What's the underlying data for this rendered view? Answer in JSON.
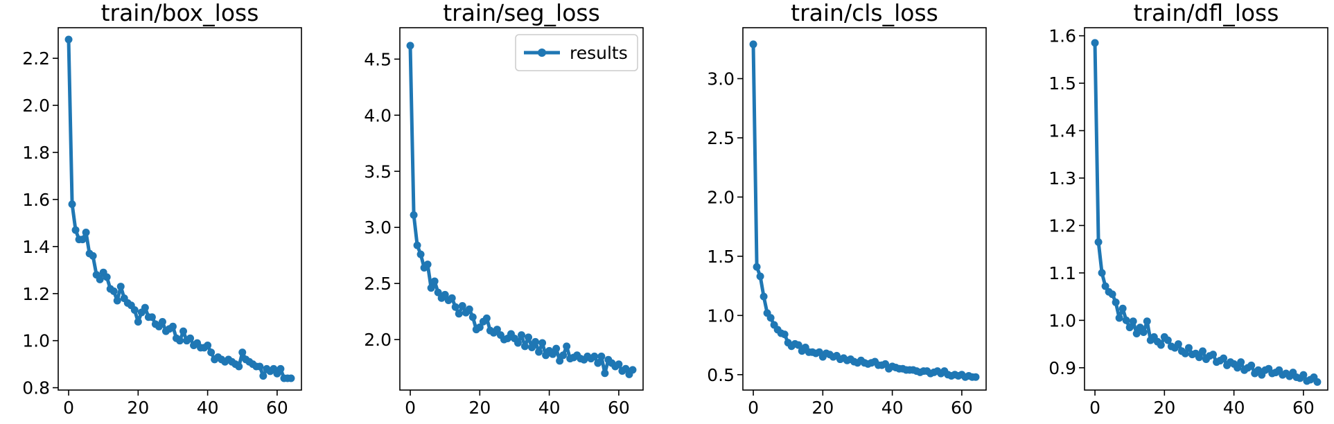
{
  "chart_data": [
    {
      "type": "line",
      "title": "train/box_loss",
      "xlabel": "",
      "ylabel": "",
      "xlim": [
        -3,
        67
      ],
      "ylim": [
        0.79,
        2.33
      ],
      "xticks": [
        0,
        20,
        40,
        60
      ],
      "yticks": [
        0.8,
        1.0,
        1.2,
        1.4,
        1.6,
        1.8,
        2.0,
        2.2
      ],
      "ytick_decimals": 1,
      "legend": null,
      "series": [
        {
          "name": "results",
          "x": [
            0,
            1,
            2,
            3,
            4,
            5,
            6,
            7,
            8,
            9,
            10,
            11,
            12,
            13,
            14,
            15,
            16,
            17,
            18,
            19,
            20,
            21,
            22,
            23,
            24,
            25,
            26,
            27,
            28,
            29,
            30,
            31,
            32,
            33,
            34,
            35,
            36,
            37,
            38,
            39,
            40,
            41,
            42,
            43,
            44,
            45,
            46,
            47,
            48,
            49,
            50,
            51,
            52,
            53,
            54,
            55,
            56,
            57,
            58,
            59,
            60,
            61,
            62,
            63,
            64
          ],
          "values": [
            2.28,
            1.58,
            1.47,
            1.43,
            1.43,
            1.46,
            1.37,
            1.36,
            1.28,
            1.26,
            1.29,
            1.27,
            1.22,
            1.21,
            1.17,
            1.23,
            1.18,
            1.16,
            1.15,
            1.13,
            1.08,
            1.12,
            1.14,
            1.1,
            1.1,
            1.07,
            1.06,
            1.08,
            1.04,
            1.05,
            1.06,
            1.01,
            1.0,
            1.04,
            1.0,
            1.01,
            0.98,
            0.99,
            0.97,
            0.97,
            0.98,
            0.95,
            0.92,
            0.93,
            0.92,
            0.91,
            0.92,
            0.91,
            0.9,
            0.89,
            0.95,
            0.92,
            0.91,
            0.9,
            0.89,
            0.89,
            0.85,
            0.88,
            0.87,
            0.88,
            0.86,
            0.88,
            0.84,
            0.84,
            0.84
          ]
        }
      ]
    },
    {
      "type": "line",
      "title": "train/seg_loss",
      "xlabel": "",
      "ylabel": "",
      "xlim": [
        -3,
        67
      ],
      "ylim": [
        1.55,
        4.78
      ],
      "xticks": [
        0,
        20,
        40,
        60
      ],
      "yticks": [
        2.0,
        2.5,
        3.0,
        3.5,
        4.0,
        4.5
      ],
      "ytick_decimals": 1,
      "legend": {
        "label": "results",
        "loc": "upper right"
      },
      "series": [
        {
          "name": "results",
          "x": [
            0,
            1,
            2,
            3,
            4,
            5,
            6,
            7,
            8,
            9,
            10,
            11,
            12,
            13,
            14,
            15,
            16,
            17,
            18,
            19,
            20,
            21,
            22,
            23,
            24,
            25,
            26,
            27,
            28,
            29,
            30,
            31,
            32,
            33,
            34,
            35,
            36,
            37,
            38,
            39,
            40,
            41,
            42,
            43,
            44,
            45,
            46,
            47,
            48,
            49,
            50,
            51,
            52,
            53,
            54,
            55,
            56,
            57,
            58,
            59,
            60,
            61,
            62,
            63,
            64
          ],
          "values": [
            4.62,
            3.11,
            2.84,
            2.76,
            2.64,
            2.67,
            2.46,
            2.52,
            2.42,
            2.37,
            2.4,
            2.35,
            2.37,
            2.29,
            2.23,
            2.3,
            2.24,
            2.27,
            2.2,
            2.09,
            2.11,
            2.16,
            2.19,
            2.08,
            2.06,
            2.09,
            2.04,
            2.0,
            2.01,
            2.05,
            2.01,
            1.97,
            2.04,
            1.94,
            2.02,
            1.93,
            1.98,
            1.89,
            1.97,
            1.86,
            1.9,
            1.87,
            1.92,
            1.81,
            1.86,
            1.94,
            1.83,
            1.84,
            1.86,
            1.83,
            1.82,
            1.85,
            1.83,
            1.85,
            1.79,
            1.85,
            1.7,
            1.82,
            1.79,
            1.76,
            1.78,
            1.72,
            1.74,
            1.69,
            1.73
          ]
        }
      ]
    },
    {
      "type": "line",
      "title": "train/cls_loss",
      "xlabel": "",
      "ylabel": "",
      "xlim": [
        -3,
        67
      ],
      "ylim": [
        0.37,
        3.43
      ],
      "xticks": [
        0,
        20,
        40,
        60
      ],
      "yticks": [
        0.5,
        1.0,
        1.5,
        2.0,
        2.5,
        3.0
      ],
      "ytick_decimals": 1,
      "legend": null,
      "series": [
        {
          "name": "results",
          "x": [
            0,
            1,
            2,
            3,
            4,
            5,
            6,
            7,
            8,
            9,
            10,
            11,
            12,
            13,
            14,
            15,
            16,
            17,
            18,
            19,
            20,
            21,
            22,
            23,
            24,
            25,
            26,
            27,
            28,
            29,
            30,
            31,
            32,
            33,
            34,
            35,
            36,
            37,
            38,
            39,
            40,
            41,
            42,
            43,
            44,
            45,
            46,
            47,
            48,
            49,
            50,
            51,
            52,
            53,
            54,
            55,
            56,
            57,
            58,
            59,
            60,
            61,
            62,
            63,
            64
          ],
          "values": [
            3.29,
            1.41,
            1.33,
            1.16,
            1.02,
            0.98,
            0.92,
            0.88,
            0.85,
            0.84,
            0.77,
            0.74,
            0.76,
            0.75,
            0.7,
            0.73,
            0.69,
            0.69,
            0.68,
            0.69,
            0.65,
            0.68,
            0.67,
            0.65,
            0.66,
            0.63,
            0.64,
            0.62,
            0.63,
            0.61,
            0.6,
            0.62,
            0.6,
            0.59,
            0.6,
            0.61,
            0.58,
            0.58,
            0.59,
            0.55,
            0.57,
            0.56,
            0.55,
            0.55,
            0.54,
            0.54,
            0.54,
            0.53,
            0.52,
            0.53,
            0.53,
            0.51,
            0.52,
            0.53,
            0.51,
            0.53,
            0.5,
            0.49,
            0.5,
            0.49,
            0.5,
            0.48,
            0.49,
            0.48,
            0.48
          ]
        }
      ]
    },
    {
      "type": "line",
      "title": "train/dfl_loss",
      "xlabel": "",
      "ylabel": "",
      "xlim": [
        -3,
        67
      ],
      "ylim": [
        0.853,
        1.617
      ],
      "xticks": [
        0,
        20,
        40,
        60
      ],
      "yticks": [
        0.9,
        1.0,
        1.1,
        1.2,
        1.3,
        1.4,
        1.5,
        1.6
      ],
      "ytick_decimals": 1,
      "legend": null,
      "series": [
        {
          "name": "results",
          "x": [
            0,
            1,
            2,
            3,
            4,
            5,
            6,
            7,
            8,
            9,
            10,
            11,
            12,
            13,
            14,
            15,
            16,
            17,
            18,
            19,
            20,
            21,
            22,
            23,
            24,
            25,
            26,
            27,
            28,
            29,
            30,
            31,
            32,
            33,
            34,
            35,
            36,
            37,
            38,
            39,
            40,
            41,
            42,
            43,
            44,
            45,
            46,
            47,
            48,
            49,
            50,
            51,
            52,
            53,
            54,
            55,
            56,
            57,
            58,
            59,
            60,
            61,
            62,
            63,
            64
          ],
          "values": [
            1.585,
            1.165,
            1.1,
            1.072,
            1.06,
            1.055,
            1.038,
            1.005,
            1.025,
            1.0,
            0.985,
            0.998,
            0.972,
            0.985,
            0.975,
            0.998,
            0.958,
            0.965,
            0.955,
            0.948,
            0.965,
            0.958,
            0.945,
            0.942,
            0.95,
            0.935,
            0.93,
            0.942,
            0.928,
            0.93,
            0.922,
            0.935,
            0.918,
            0.925,
            0.928,
            0.912,
            0.915,
            0.92,
            0.905,
            0.912,
            0.908,
            0.9,
            0.912,
            0.895,
            0.9,
            0.905,
            0.888,
            0.895,
            0.885,
            0.895,
            0.898,
            0.888,
            0.89,
            0.895,
            0.885,
            0.888,
            0.882,
            0.89,
            0.88,
            0.878,
            0.885,
            0.872,
            0.875,
            0.88,
            0.87
          ]
        }
      ]
    }
  ]
}
